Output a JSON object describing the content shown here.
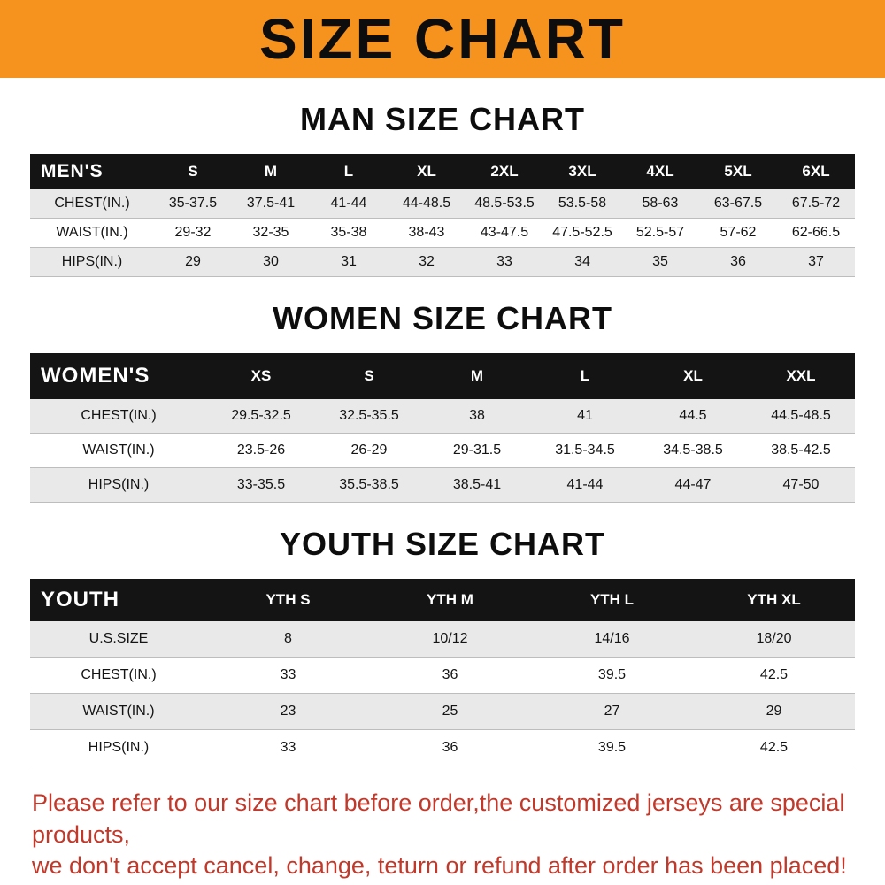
{
  "banner": {
    "title": "SIZE CHART",
    "background": "#f6921e"
  },
  "sections": [
    {
      "title": "MAN SIZE CHART",
      "header_label": "MEN'S",
      "columns": [
        "S",
        "M",
        "L",
        "XL",
        "2XL",
        "3XL",
        "4XL",
        "5XL",
        "6XL"
      ],
      "rows": [
        {
          "label": "CHEST(IN.)",
          "values": [
            "35-37.5",
            "37.5-41",
            "41-44",
            "44-48.5",
            "48.5-53.5",
            "53.5-58",
            "58-63",
            "63-67.5",
            "67.5-72"
          ]
        },
        {
          "label": "WAIST(IN.)",
          "values": [
            "29-32",
            "32-35",
            "35-38",
            "38-43",
            "43-47.5",
            "47.5-52.5",
            "52.5-57",
            "57-62",
            "62-66.5"
          ]
        },
        {
          "label": "HIPS(IN.)",
          "values": [
            "29",
            "30",
            "31",
            "32",
            "33",
            "34",
            "35",
            "36",
            "37"
          ]
        }
      ]
    },
    {
      "title": "WOMEN SIZE CHART",
      "header_label": "WOMEN'S",
      "columns": [
        "XS",
        "S",
        "M",
        "L",
        "XL",
        "XXL"
      ],
      "rows": [
        {
          "label": "CHEST(IN.)",
          "values": [
            "29.5-32.5",
            "32.5-35.5",
            "38",
            "41",
            "44.5",
            "44.5-48.5"
          ]
        },
        {
          "label": "WAIST(IN.)",
          "values": [
            "23.5-26",
            "26-29",
            "29-31.5",
            "31.5-34.5",
            "34.5-38.5",
            "38.5-42.5"
          ]
        },
        {
          "label": "HIPS(IN.)",
          "values": [
            "33-35.5",
            "35.5-38.5",
            "38.5-41",
            "41-44",
            "44-47",
            "47-50"
          ]
        }
      ]
    },
    {
      "title": "YOUTH SIZE CHART",
      "header_label": "YOUTH",
      "columns": [
        "YTH S",
        "YTH M",
        "YTH L",
        "YTH XL"
      ],
      "rows": [
        {
          "label": "U.S.SIZE",
          "values": [
            "8",
            "10/12",
            "14/16",
            "18/20"
          ]
        },
        {
          "label": "CHEST(IN.)",
          "values": [
            "33",
            "36",
            "39.5",
            "42.5"
          ]
        },
        {
          "label": "WAIST(IN.)",
          "values": [
            "23",
            "25",
            "27",
            "29"
          ]
        },
        {
          "label": "HIPS(IN.)",
          "values": [
            "33",
            "36",
            "39.5",
            "42.5"
          ]
        }
      ]
    }
  ],
  "footer": {
    "color": "#c0392b",
    "lines": [
      "Please refer to our size chart before order,the customized jerseys are special products,",
      "we don't accept cancel, change, teturn or refund after order has been placed!"
    ]
  }
}
